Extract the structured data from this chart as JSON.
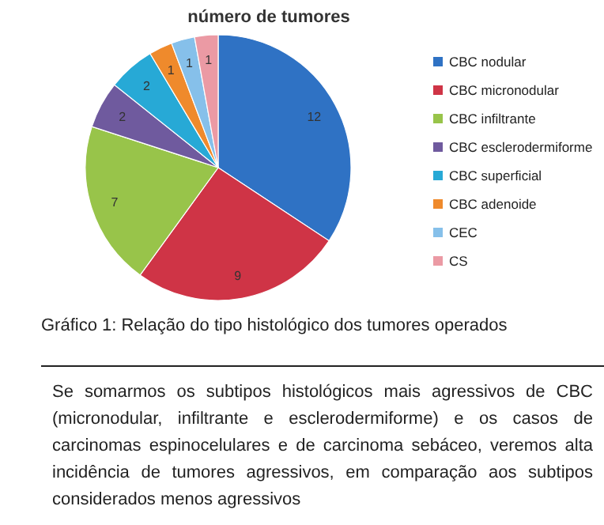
{
  "chart_data": {
    "type": "pie",
    "title": "número de tumores",
    "categories": [
      "CBC nodular",
      "CBC micronodular",
      "CBC infiltrante",
      "CBC esclerodermiforme",
      "CBC superficial",
      "CBC adenoide",
      "CEC",
      "CS"
    ],
    "values": [
      12,
      9,
      7,
      2,
      2,
      1,
      1,
      1
    ],
    "colors": [
      "#2f72c4",
      "#cf3446",
      "#98c44a",
      "#6f5a9e",
      "#27a9d6",
      "#ef8a2c",
      "#86c0ea",
      "#eb9aa4"
    ],
    "data_labels": true,
    "legend": "right",
    "annotations": [
      "Gráfico 1: Relação do tipo histológico dos tumores operados",
      "Se somarmos os subtipos histológicos mais agressivos de CBC (micronodular, infiltrante e esclerodermiforme) e os casos de carcinomas espinocelulares e de carcinoma sebáceo, veremos alta incidência de tumores agressivos, em comparação aos subtipos considerados menos agressivos"
    ]
  }
}
